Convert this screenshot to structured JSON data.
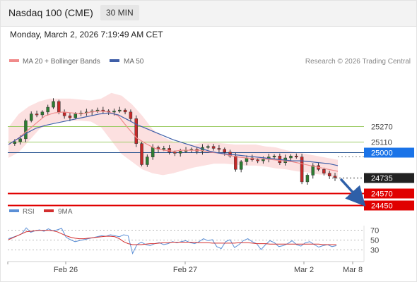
{
  "header": {
    "title": "Nasdaq 100 (CME)",
    "timeframe": "30 MIN",
    "datetime": "Monday, March 2, 2026 7:19:49 AM CET"
  },
  "legend": {
    "ma20_bb": "MA 20 + Bollinger Bands",
    "ma50": "MA 50",
    "credit": "Research © 2026 Trading Central",
    "rsi": "RSI",
    "ma9": "9MA"
  },
  "colors": {
    "candle_up": "#2e7d32",
    "candle_down": "#c62828",
    "bollinger_fill": "#fbd5d5",
    "ma20": "#f08a8a",
    "ma50": "#3f5fa8",
    "support_line": "#e00000",
    "resistance_line": "#9ccc65",
    "pivot_line": "#1f4e8c",
    "forecast_arrow": "#2e5fa8",
    "rsi_line": "#5b8fd6",
    "rsi_ma": "#d32f2f"
  },
  "chart_data": [
    {
      "type": "candlestick",
      "x_ticks": [
        "Feb 26",
        "Feb 27",
        "Mar 2",
        "Mar 8"
      ],
      "ylim": [
        24380,
        25780
      ],
      "levels": [
        {
          "value": 25270,
          "label": "25270",
          "kind": "resistance"
        },
        {
          "value": 25110,
          "label": "25110",
          "kind": "resistance"
        },
        {
          "value": 25000,
          "label": "25000",
          "kind": "pivot"
        },
        {
          "value": 24735,
          "label": "24735",
          "kind": "last-price"
        },
        {
          "value": 24570,
          "label": "24570",
          "kind": "support"
        },
        {
          "value": 24450,
          "label": "24450",
          "kind": "support"
        }
      ],
      "price_path": [
        25090,
        25110,
        25140,
        25330,
        25400,
        25390,
        25420,
        25470,
        25530,
        25420,
        25380,
        25360,
        25400,
        25410,
        25420,
        25430,
        25440,
        25430,
        25420,
        25430,
        25440,
        25420,
        25350,
        25090,
        24870,
        24950,
        25050,
        25030,
        25040,
        25000,
        24990,
        25010,
        25020,
        25030,
        25010,
        25050,
        25060,
        25040,
        25030,
        25000,
        24960,
        24820,
        24900,
        24940,
        24920,
        24910,
        24930,
        24950,
        24960,
        24890,
        24940,
        24960,
        24950,
        24690,
        24760,
        24860,
        24820,
        24780,
        24750,
        24735
      ],
      "ma20": [
        25080,
        25140,
        25220,
        25300,
        25380,
        25410,
        25420,
        25410,
        25400,
        25420,
        25430,
        25420,
        25380,
        25260,
        25150,
        25090,
        25040,
        25020,
        25010,
        25020,
        25020,
        25020,
        25000,
        24990,
        24970,
        24950,
        24940,
        24930,
        24930,
        24920,
        24910,
        24900,
        24880,
        24860,
        24840,
        24820,
        24800
      ],
      "ma50": [
        25080,
        25140,
        25200,
        25250,
        25280,
        25300,
        25320,
        25340,
        25360,
        25380,
        25400,
        25410,
        25390,
        25340,
        25290,
        25250,
        25210,
        25170,
        25130,
        25100,
        25070,
        25040,
        25010,
        24990,
        24980,
        24970,
        24960,
        24950,
        24940,
        24930,
        24920,
        24910,
        24910,
        24900,
        24890,
        24880,
        24860
      ],
      "bb_upper": [
        25260,
        25400,
        25480,
        25530,
        25560,
        25560,
        25560,
        25550,
        25540,
        25560,
        25620,
        25590,
        25500,
        25380,
        25240,
        25160,
        25110,
        25090,
        25080,
        25100,
        25100,
        25090,
        25080,
        25080,
        25080,
        25060,
        25050,
        25020,
        25000,
        24980,
        24960,
        24940,
        24920
      ],
      "bb_lower": [
        24940,
        25000,
        25120,
        25240,
        25300,
        25320,
        25330,
        25330,
        25320,
        25260,
        25120,
        24980,
        24900,
        24820,
        24780,
        24760,
        24780,
        24810,
        24840,
        24860,
        24880,
        24880,
        24870,
        24860,
        24860,
        24850,
        24830,
        24820,
        24800,
        24790,
        24770,
        24760,
        24720
      ],
      "forecast_target": 24450
    },
    {
      "type": "line",
      "title": "RSI",
      "y_ticks": [
        70,
        50,
        30
      ],
      "ylim": [
        10,
        90
      ],
      "series": [
        {
          "name": "RSI",
          "values": [
            52,
            55,
            58,
            62,
            74,
            65,
            68,
            70,
            67,
            72,
            68,
            70,
            73,
            55,
            50,
            46,
            48,
            50,
            52,
            54,
            56,
            58,
            57,
            60,
            58,
            56,
            60,
            58,
            22,
            40,
            45,
            40,
            38,
            42,
            44,
            40,
            42,
            46,
            44,
            46,
            48,
            44,
            42,
            46,
            52,
            48,
            50,
            36,
            32,
            46,
            50,
            34,
            40,
            48,
            52,
            46,
            42,
            30,
            40,
            48,
            44,
            36,
            38,
            42,
            48,
            40,
            37,
            44,
            46,
            40,
            35,
            38,
            40,
            36,
            38
          ]
        },
        {
          "name": "9MA",
          "values": [
            50,
            54,
            58,
            62,
            66,
            67,
            68,
            69,
            69,
            69,
            68,
            66,
            62,
            58,
            55,
            53,
            52,
            52,
            53,
            54,
            55,
            56,
            57,
            57,
            56,
            52,
            46,
            42,
            40,
            40,
            40,
            41,
            42,
            42,
            43,
            44,
            44,
            45,
            45,
            45,
            45,
            45,
            45,
            44,
            44,
            44,
            43,
            43,
            43,
            43,
            43,
            43,
            44,
            44,
            44,
            43,
            42,
            42,
            42,
            41,
            41,
            41,
            41,
            41,
            41,
            41,
            41,
            41,
            41,
            41,
            41,
            40,
            40,
            40,
            40
          ]
        }
      ]
    }
  ]
}
